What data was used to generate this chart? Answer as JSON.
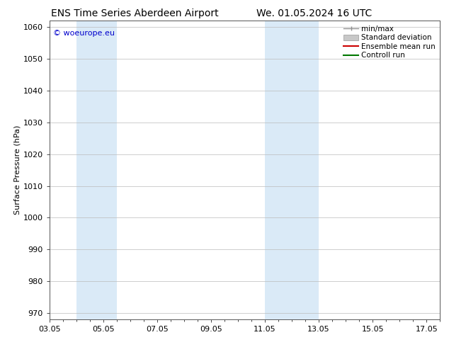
{
  "title_left": "ENS Time Series Aberdeen Airport",
  "title_right": "We. 01.05.2024 16 UTC",
  "ylabel": "Surface Pressure (hPa)",
  "ylim": [
    968,
    1062
  ],
  "yticks": [
    970,
    980,
    990,
    1000,
    1010,
    1020,
    1030,
    1040,
    1050,
    1060
  ],
  "x_min": 3.0,
  "x_max": 17.5,
  "xtick_labels": [
    "03.05",
    "05.05",
    "07.05",
    "09.05",
    "11.05",
    "13.05",
    "15.05",
    "17.05"
  ],
  "xtick_positions": [
    3.0,
    5.0,
    7.0,
    9.0,
    11.0,
    13.0,
    15.0,
    17.0
  ],
  "shaded_bands": [
    {
      "x_start": 4.0,
      "x_end": 5.5,
      "color": "#daeaf7"
    },
    {
      "x_start": 11.0,
      "x_end": 13.0,
      "color": "#daeaf7"
    }
  ],
  "legend_items": [
    {
      "label": "min/max",
      "color": "#909090",
      "style": "minmax"
    },
    {
      "label": "Standard deviation",
      "color": "#c8c8c8",
      "style": "box"
    },
    {
      "label": "Ensemble mean run",
      "color": "#cc0000",
      "style": "line"
    },
    {
      "label": "Controll run",
      "color": "#007700",
      "style": "line"
    }
  ],
  "watermark_text": "© woeurope.eu",
  "watermark_color": "#0000cc",
  "background_color": "#ffffff",
  "grid_color": "#bbbbbb",
  "title_fontsize": 10,
  "axis_label_fontsize": 8,
  "tick_fontsize": 8,
  "legend_fontsize": 7.5
}
